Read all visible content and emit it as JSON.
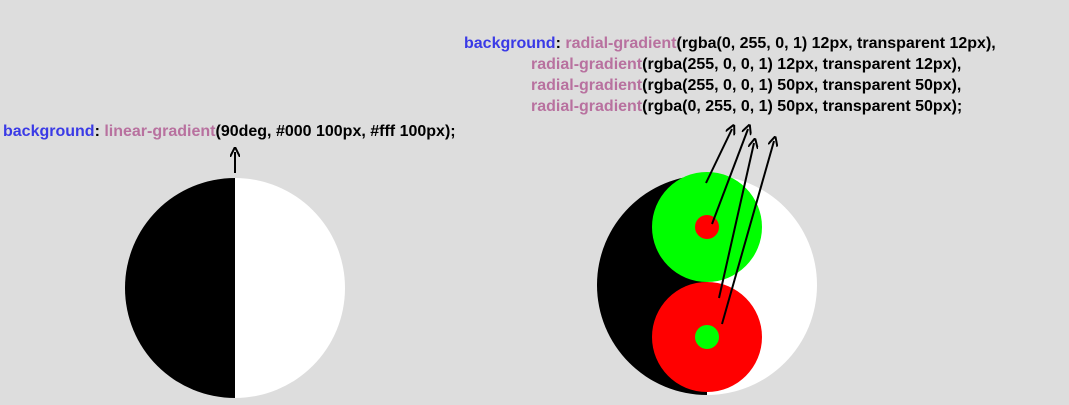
{
  "left": {
    "property": "background",
    "colon": ":",
    "function": "linear-gradient",
    "args": "(90deg, #000 100px, #fff 100px);"
  },
  "right": {
    "property": "background",
    "colon": ":",
    "lines": [
      {
        "function": "radial-gradient",
        "args": "(rgba(0, 255, 0, 1) 12px, transparent 12px),"
      },
      {
        "function": "radial-gradient",
        "args": "(rgba(255, 0, 0, 1) 12px, transparent 12px),"
      },
      {
        "function": "radial-gradient",
        "args": "(rgba(255, 0, 0, 1) 50px, transparent 50px),"
      },
      {
        "function": "radial-gradient",
        "args": "(rgba(0, 255, 0, 1) 50px, transparent 50px);"
      }
    ]
  }
}
